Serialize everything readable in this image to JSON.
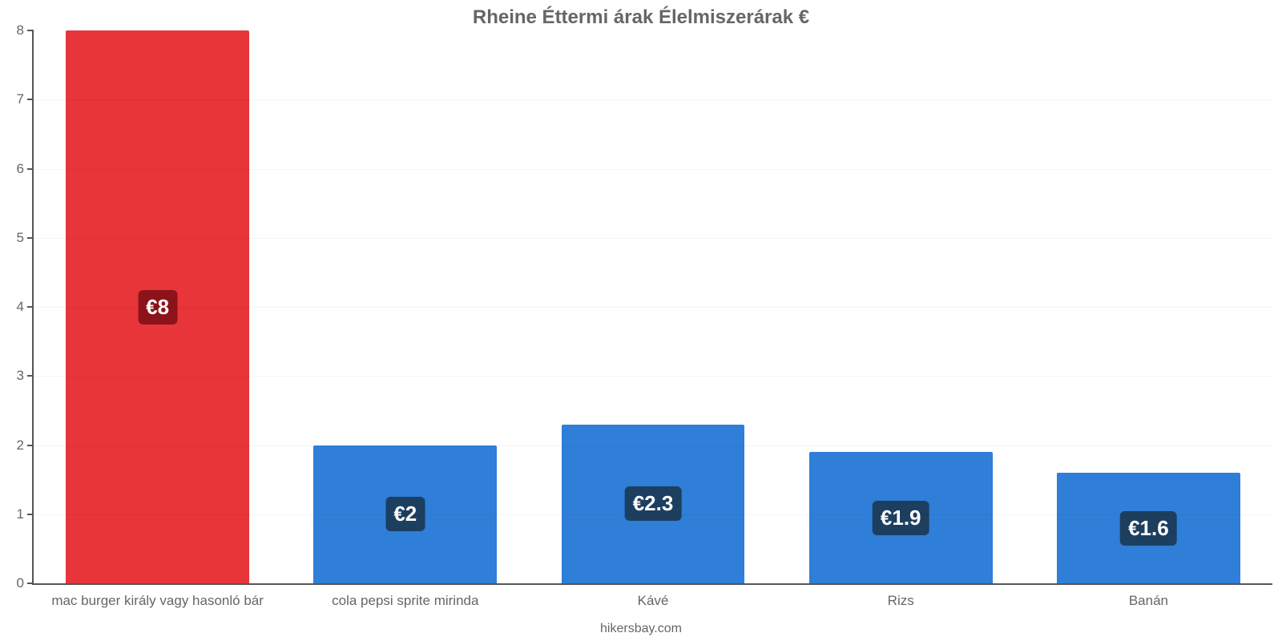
{
  "chart": {
    "type": "bar",
    "title": "Rheine Éttermi árak Élelmiszerárak €",
    "title_fontsize": 24,
    "title_color": "#666666",
    "background_color": "#ffffff",
    "grid_color": "rgba(0,0,0,0.04)",
    "axis_color": "#555555",
    "tick_color": "#666666",
    "tick_fontsize": 17,
    "x_label_fontsize": 17,
    "x_label_color": "#666666",
    "ylim": [
      0,
      8
    ],
    "ytick_step": 1,
    "bar_width": 0.74,
    "value_label_fontsize": 26,
    "categories": [
      "mac burger király vagy hasonló bár",
      "cola pepsi sprite mirinda",
      "Kávé",
      "Rizs",
      "Banán"
    ],
    "values": [
      8,
      2,
      2.3,
      1.9,
      1.6
    ],
    "value_labels": [
      "€8",
      "€2",
      "€2.3",
      "€1.9",
      "€1.6"
    ],
    "bar_colors": [
      "#e7353a",
      "#2f7ed8",
      "#2f7ed8",
      "#2f7ed8",
      "#2f7ed8"
    ],
    "badge_bg_colors": [
      "#8c1319",
      "#1c3f5f",
      "#1c3f5f",
      "#1c3f5f",
      "#1c3f5f"
    ],
    "badge_text_color": "#ffffff",
    "attribution": "hikersbay.com",
    "attribution_fontsize": 16,
    "attribution_color": "#666666"
  }
}
